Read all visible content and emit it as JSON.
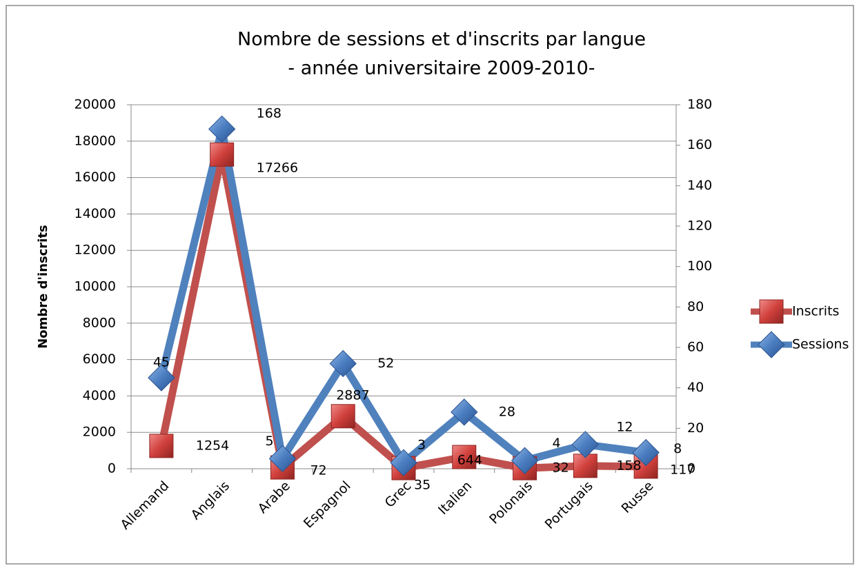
{
  "chart_data": {
    "type": "line",
    "title": "Nombre de sessions et d'inscrits par langue",
    "subtitle": "- année universitaire 2009-2010-",
    "ylabel": "Nombre d'inscrits",
    "categories": [
      "Allemand",
      "Anglais",
      "Arabe",
      "Espagnol",
      "Grec",
      "Italien",
      "Polonais",
      "Portugais",
      "Russe"
    ],
    "series": [
      {
        "name": "Inscrits",
        "color": "#c0504d",
        "label_color": "#d42a2a",
        "values": [
          1254,
          17266,
          72,
          2887,
          35,
          644,
          32,
          158,
          117
        ]
      },
      {
        "name": "Sessions",
        "color": "#4f81bd",
        "label_color": "#2a8ed0",
        "axis": "y2",
        "values": [
          45,
          168,
          5,
          52,
          3,
          28,
          4,
          12,
          8
        ]
      }
    ],
    "ylim": [
      0,
      20000
    ],
    "yticks": [
      0,
      2000,
      4000,
      6000,
      8000,
      10000,
      12000,
      14000,
      16000,
      18000,
      20000
    ],
    "y2lim": [
      0,
      180
    ],
    "y2ticks": [
      0,
      20,
      40,
      60,
      80,
      100,
      120,
      140,
      160,
      180
    ],
    "grid": true,
    "legend": "right"
  }
}
